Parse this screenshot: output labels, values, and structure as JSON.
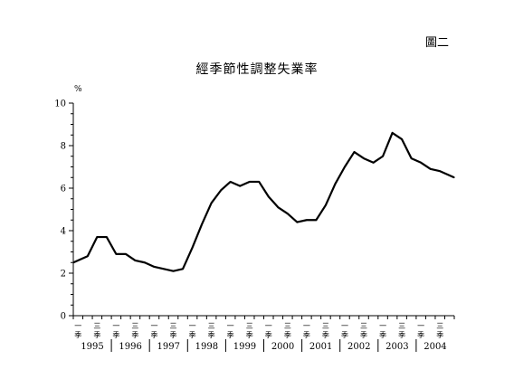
{
  "figure_label": "圖二",
  "chart_data": {
    "type": "line",
    "title": "經季節性調整失業率",
    "ylabel": "%",
    "xlabel": "",
    "ylim": [
      0,
      10
    ],
    "yticks": [
      0,
      2,
      4,
      6,
      8,
      10
    ],
    "grid": false,
    "quarter_labels": [
      "一",
      "季",
      "三",
      "季"
    ],
    "years": [
      "1995",
      "1996",
      "1997",
      "1998",
      "1999",
      "2000",
      "2001",
      "2002",
      "2003",
      "2004"
    ],
    "x": [
      "1995Q1",
      "1995Q2",
      "1995Q3",
      "1995Q4",
      "1996Q1",
      "1996Q2",
      "1996Q3",
      "1996Q4",
      "1997Q1",
      "1997Q2",
      "1997Q3",
      "1997Q4",
      "1998Q1",
      "1998Q2",
      "1998Q3",
      "1998Q4",
      "1999Q1",
      "1999Q2",
      "1999Q3",
      "1999Q4",
      "2000Q1",
      "2000Q2",
      "2000Q3",
      "2000Q4",
      "2001Q1",
      "2001Q2",
      "2001Q3",
      "2001Q4",
      "2002Q1",
      "2002Q2",
      "2002Q3",
      "2002Q4",
      "2003Q1",
      "2003Q2",
      "2003Q3",
      "2003Q4",
      "2004Q1",
      "2004Q2",
      "2004Q3",
      "2004Q4"
    ],
    "series": [
      {
        "values": [
          2.5,
          2.8,
          3.7,
          3.7,
          2.9,
          2.9,
          2.6,
          2.5,
          2.3,
          2.2,
          2.1,
          2.2,
          3.2,
          4.3,
          5.3,
          5.9,
          6.3,
          6.1,
          6.3,
          6.3,
          5.6,
          5.1,
          4.8,
          4.4,
          4.5,
          4.5,
          5.2,
          6.2,
          7.0,
          7.7,
          7.4,
          7.2,
          7.5,
          8.6,
          8.3,
          7.4,
          7.2,
          6.9,
          6.8,
          6.5
        ]
      }
    ]
  }
}
